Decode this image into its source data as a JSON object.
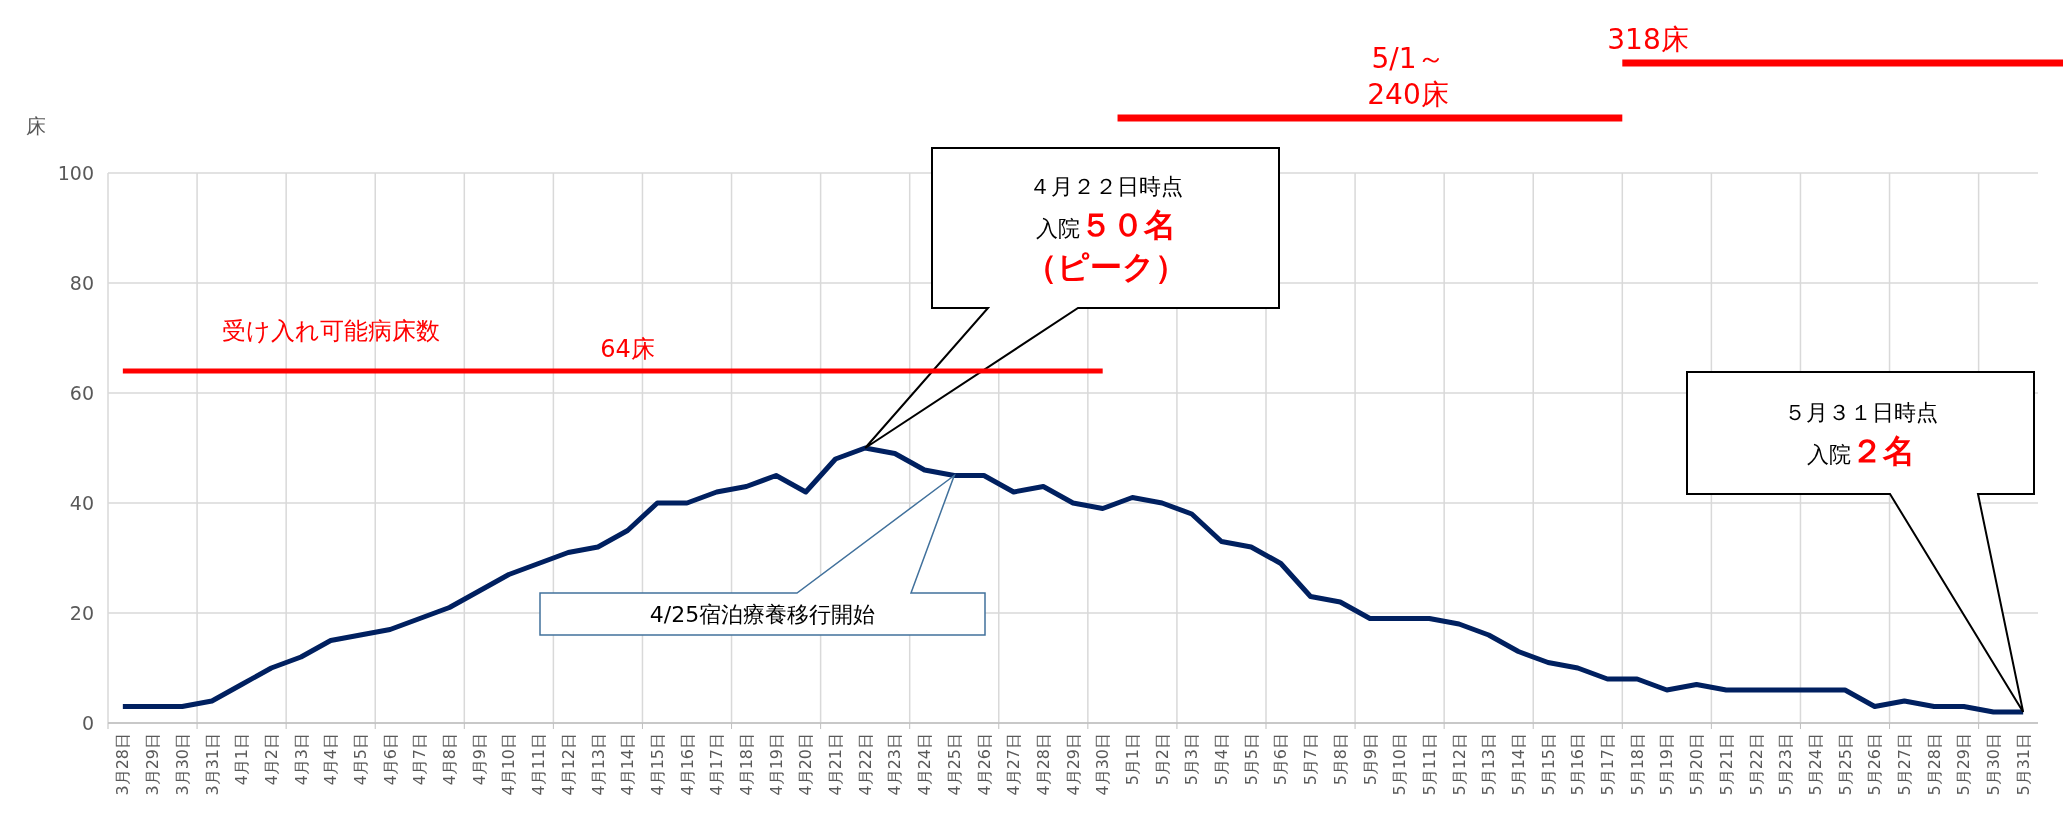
{
  "chart_data": {
    "type": "line",
    "ylabel": "床",
    "categories": [
      "3月28日",
      "3月29日",
      "3月30日",
      "3月31日",
      "4月1日",
      "4月2日",
      "4月3日",
      "4月4日",
      "4月5日",
      "4月6日",
      "4月7日",
      "4月8日",
      "4月9日",
      "4月10日",
      "4月11日",
      "4月12日",
      "4月13日",
      "4月14日",
      "4月15日",
      "4月16日",
      "4月17日",
      "4月18日",
      "4月19日",
      "4月20日",
      "4月21日",
      "4月22日",
      "4月23日",
      "4月24日",
      "4月25日",
      "4月26日",
      "4月27日",
      "4月28日",
      "4月29日",
      "4月30日",
      "5月1日",
      "5月2日",
      "5月3日",
      "5月4日",
      "5月5日",
      "5月6日",
      "5月7日",
      "5月8日",
      "5月9日",
      "5月10日",
      "5月11日",
      "5月12日",
      "5月13日",
      "5月14日",
      "5月15日",
      "5月16日",
      "5月17日",
      "5月18日",
      "5月19日",
      "5月20日",
      "5月21日",
      "5月22日",
      "5月23日",
      "5月24日",
      "5月25日",
      "5月26日",
      "5月27日",
      "5月28日",
      "5月29日",
      "5月30日",
      "5月31日"
    ],
    "series": [
      {
        "color": "#002060",
        "values": [
          3,
          3,
          3,
          4,
          7,
          10,
          12,
          15,
          16,
          17,
          19,
          21,
          24,
          27,
          29,
          31,
          32,
          35,
          40,
          40,
          42,
          43,
          45,
          42,
          48,
          50,
          49,
          46,
          45,
          45,
          42,
          43,
          40,
          39,
          41,
          40,
          38,
          33,
          32,
          29,
          23,
          22,
          19,
          19,
          19,
          18,
          16,
          13,
          11,
          10,
          8,
          8,
          6,
          7,
          6,
          6,
          6,
          6,
          6,
          3,
          4,
          3,
          3,
          2,
          2
        ]
      },
      {
        "name": "受け入れ可能病床数",
        "color": "#ff0000",
        "values": [
          64,
          64,
          64,
          64,
          64,
          64,
          64,
          64,
          64,
          64,
          64,
          64,
          64,
          64,
          64,
          64,
          64,
          64,
          64,
          64,
          64,
          64,
          64,
          64,
          64,
          64,
          64,
          64,
          64,
          64,
          64,
          64,
          64,
          64,
          null,
          null,
          null,
          null,
          null,
          null,
          null,
          null,
          null,
          null,
          null,
          null,
          null,
          null,
          null,
          null,
          null,
          null,
          null,
          null,
          null,
          null,
          null,
          null,
          null,
          null,
          null,
          null,
          null,
          null,
          null
        ]
      }
    ],
    "ylim": [
      0,
      100
    ],
    "yticks": [
      0,
      20,
      40,
      60,
      80,
      100
    ],
    "grid": true,
    "legend": false,
    "marker": "none",
    "annotations": [
      {
        "text": "64床",
        "x": "4月14日",
        "y": 64
      },
      "5/1～\n240床",
      "318床",
      "４月２２日時点入院５０名（ピーク）",
      "4/25宿泊療養移行開始",
      "５月３１日時点入院２名"
    ]
  }
}
